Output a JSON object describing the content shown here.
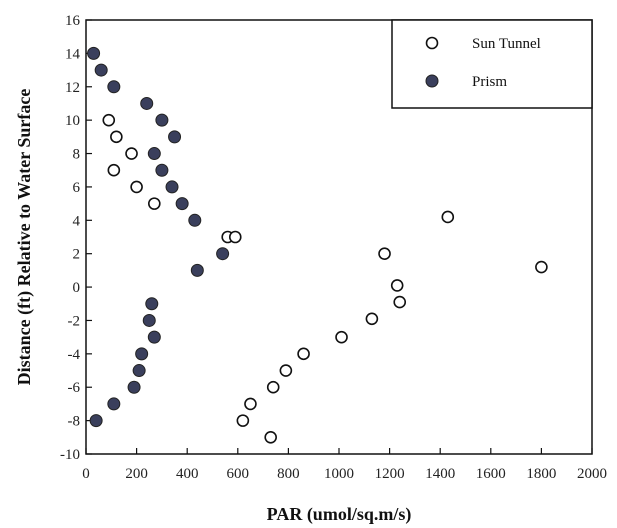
{
  "chart_data": {
    "type": "scatter",
    "xlabel": "PAR (umol/sq.m/s)",
    "ylabel": "Distance (ft) Relative to Water Surface",
    "xlim": [
      0,
      2000
    ],
    "ylim": [
      -10,
      16
    ],
    "xticks": [
      0,
      200,
      400,
      600,
      800,
      1000,
      1200,
      1400,
      1600,
      1800,
      2000
    ],
    "yticks": [
      -10,
      -8,
      -6,
      -4,
      -2,
      0,
      2,
      4,
      6,
      8,
      10,
      12,
      14,
      16
    ],
    "legend_position": "top-right",
    "grid": false,
    "series": [
      {
        "name": "Sun Tunnel",
        "marker": "open-circle",
        "color": "#111111",
        "points": [
          [
            90,
            10
          ],
          [
            120,
            9
          ],
          [
            180,
            8
          ],
          [
            110,
            7
          ],
          [
            200,
            6
          ],
          [
            270,
            5
          ],
          [
            560,
            3
          ],
          [
            590,
            3
          ],
          [
            1180,
            2
          ],
          [
            1430,
            4.2
          ],
          [
            1800,
            1.2
          ],
          [
            1230,
            0.1
          ],
          [
            1240,
            -0.9
          ],
          [
            1130,
            -1.9
          ],
          [
            1010,
            -3
          ],
          [
            860,
            -4
          ],
          [
            790,
            -5
          ],
          [
            740,
            -6
          ],
          [
            650,
            -7
          ],
          [
            620,
            -8
          ],
          [
            730,
            -9
          ]
        ]
      },
      {
        "name": "Prism",
        "marker": "filled-circle",
        "color": "#3a3f5c",
        "points": [
          [
            30,
            14
          ],
          [
            60,
            13
          ],
          [
            110,
            12
          ],
          [
            240,
            11
          ],
          [
            300,
            10
          ],
          [
            350,
            9
          ],
          [
            270,
            8
          ],
          [
            300,
            7
          ],
          [
            340,
            6
          ],
          [
            380,
            5
          ],
          [
            430,
            4
          ],
          [
            540,
            2
          ],
          [
            440,
            1
          ],
          [
            260,
            -1
          ],
          [
            250,
            -2
          ],
          [
            270,
            -3
          ],
          [
            220,
            -4
          ],
          [
            210,
            -5
          ],
          [
            190,
            -6
          ],
          [
            110,
            -7
          ],
          [
            40,
            -8
          ]
        ]
      }
    ]
  }
}
